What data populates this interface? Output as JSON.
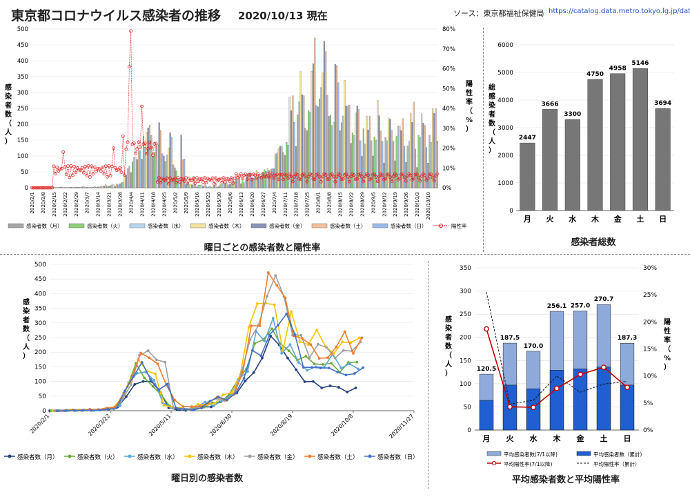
{
  "header": {
    "title": "東京都コロナウイルス感染者の推移",
    "date": "2020/10/13 現在",
    "source_label": "ソース：東京都福祉保健局",
    "source_url": "https://catalog.data.metro.tokyo.lg.jp/dat"
  },
  "colors": {
    "mon": "#a6a6a6",
    "tue": "#8fcf7b",
    "wed": "#b9d6ee",
    "thu": "#f2e29a",
    "fri": "#8a93b8",
    "sat": "#f3c19f",
    "sun": "#9bbbe6",
    "rate": "#e02020",
    "line_mon": "#23407a",
    "line_tue": "#6aaa3c",
    "line_wed": "#5aa7dc",
    "line_thu": "#f5c400",
    "line_fri": "#9f9f9f",
    "line_sat": "#ed7d31",
    "line_sun": "#4472c4",
    "total_bar": "#777777",
    "avg_light": "#8eaadb",
    "avg_dark": "#1f5fd1"
  },
  "chart_data": [
    {
      "id": "weekday-bars",
      "type": "bar",
      "caption": "曜日ごとの感染者数と陽性率",
      "ylabel": "感染者数（人）",
      "y2label": "陽性率（%）",
      "ylim": [
        0,
        500
      ],
      "y2lim": [
        0,
        0.8
      ],
      "yticks": [
        "0",
        "50",
        "100",
        "150",
        "200",
        "250",
        "300",
        "350",
        "400",
        "450",
        "500"
      ],
      "y2ticks": [
        "0%",
        "10%",
        "20%",
        "30%",
        "40%",
        "50%",
        "60%",
        "70%",
        "80%"
      ],
      "xticks": [
        "2020/2/1",
        "2020/2/8",
        "2020/2/15",
        "2020/2/22",
        "2020/2/29",
        "2020/3/7",
        "2020/3/14",
        "2020/3/21",
        "2020/3/28",
        "2020/4/4",
        "2020/4/11",
        "2020/4/18",
        "2020/4/25",
        "2020/5/2",
        "2020/5/9",
        "2020/5/16",
        "2020/5/23",
        "2020/5/30",
        "2020/6/6",
        "2020/6/13",
        "2020/6/20",
        "2020/6/27",
        "2020/7/4",
        "2020/7/11",
        "2020/7/18",
        "2020/7/25",
        "2020/8/1",
        "2020/8/8",
        "2020/8/15",
        "2020/8/22",
        "2020/8/29",
        "2020/9/5",
        "2020/9/12",
        "2020/9/19",
        "2020/9/26",
        "2020/10/3",
        "2020/10/10"
      ],
      "legend": [
        "感染者数（月）",
        "感染者数（火）",
        "感染者数（水）",
        "感染者数（木）",
        "感染者数（金）",
        "感染者数（土）",
        "感染者数（日）",
        "陽性率"
      ],
      "weekly_values": {
        "月": [
          0,
          0,
          1,
          1,
          2,
          2,
          3,
          6,
          13,
          48,
          90,
          100,
          100,
          63,
          10,
          3,
          1,
          5,
          13,
          13,
          30,
          48,
          60,
          102,
          130,
          180,
          255,
          225,
          180,
          140,
          99,
          100,
          78,
          85,
          80,
          64,
          78
        ],
        "火": [
          0,
          0,
          1,
          1,
          2,
          1,
          3,
          7,
          16,
          82,
          162,
          112,
          83,
          54,
          15,
          8,
          5,
          10,
          12,
          27,
          30,
          57,
          106,
          143,
          230,
          243,
          280,
          229,
          205,
          173,
          186,
          160,
          158,
          162,
          132,
          165,
          166
        ],
        "水": [
          0,
          0,
          1,
          1,
          2,
          1,
          5,
          9,
          17,
          96,
          128,
          132,
          104,
          28,
          10,
          8,
          3,
          13,
          29,
          16,
          35,
          52,
          110,
          134,
          271,
          238,
          316,
          196,
          226,
          165,
          138,
          150,
          148,
          194,
          146,
          160,
          143
        ],
        "木": [
          0,
          0,
          1,
          2,
          1,
          2,
          6,
          10,
          40,
          97,
          175,
          136,
          126,
          19,
          12,
          9,
          3,
          22,
          20,
          25,
          55,
          61,
          124,
          286,
          366,
          367,
          362,
          206,
          339,
          236,
          226,
          276,
          220,
          195,
          235,
          233,
          249
        ],
        "金": [
          0,
          0,
          2,
          2,
          3,
          2,
          6,
          5,
          40,
          89,
          189,
          205,
          174,
          166,
          9,
          5,
          7,
          12,
          27,
          42,
          35,
          54,
          131,
          243,
          293,
          391,
          462,
          389,
          258,
          258,
          182,
          227,
          216,
          180,
          206,
          204,
          235
        ],
        "土": [
          0,
          0,
          3,
          1,
          5,
          4,
          9,
          12,
          61,
          116,
          197,
          181,
          160,
          88,
          36,
          14,
          14,
          14,
          28,
          47,
          36,
          57,
          131,
          290,
          290,
          472,
          429,
          385,
          256,
          247,
          226,
          179,
          181,
          218,
          270,
          196,
          249
        ],
        "日": [
          0,
          0,
          1,
          1,
          1,
          2,
          5,
          9,
          68,
          117,
          165,
          107,
          72,
          91,
          10,
          5,
          2,
          9,
          33,
          47,
          36,
          60,
          111,
          206,
          188,
          259,
          292,
          331,
          260,
          148,
          148,
          146,
          146,
          132,
          122,
          127,
          147
        ]
      }
    },
    {
      "id": "weekday-totals",
      "type": "bar",
      "caption": "感染者総数",
      "ylabel": "総感染者数（人）",
      "ylim": [
        0,
        6000
      ],
      "yticks": [
        "0",
        "1000",
        "2000",
        "3000",
        "4000",
        "5000",
        "6000"
      ],
      "categories": [
        "月",
        "火",
        "水",
        "木",
        "金",
        "土",
        "日"
      ],
      "values": [
        2447,
        3666,
        3300,
        4750,
        4958,
        5146,
        3694
      ],
      "value_labels": [
        "2447",
        "3666",
        "3300",
        "4750",
        "4958",
        "5146",
        "3694"
      ]
    },
    {
      "id": "weekday-lines",
      "type": "line",
      "caption": "曜日別の感染者数",
      "ylabel": "感染者数（人）",
      "ylim": [
        0,
        500
      ],
      "yticks": [
        "0",
        "50",
        "100",
        "150",
        "200",
        "250",
        "300",
        "350",
        "400",
        "450",
        "500"
      ],
      "xticks": [
        "2020/2/1",
        "2020/3/22",
        "2020/5/11",
        "2020/6/30",
        "2020/8/19",
        "2020/10/8",
        "2020/11/27"
      ],
      "legend": [
        "感染者数（月）",
        "感染者数（火）",
        "感染者数（水）",
        "感染者数（木）",
        "感染者数（金）",
        "感染者数（土）",
        "感染者数（日）"
      ]
    },
    {
      "id": "average-rate",
      "type": "bar",
      "caption": "平均感染者数と平均陽性率",
      "ylabel": "感染者数（人）",
      "y2label": "陽性率（%）",
      "ylim": [
        0,
        350
      ],
      "y2lim": [
        0,
        0.3
      ],
      "yticks": [
        "0",
        "50",
        "100",
        "150",
        "200",
        "250",
        "300",
        "350"
      ],
      "y2ticks": [
        "0%",
        "5%",
        "10%",
        "15%",
        "20%",
        "25%",
        "30%"
      ],
      "categories": [
        "月",
        "火",
        "水",
        "木",
        "金",
        "土",
        "日"
      ],
      "series": [
        {
          "name": "平均感染者数(7/1以降)",
          "values": [
            120.5,
            187.5,
            170.0,
            256.1,
            257.0,
            270.7,
            187.3
          ]
        },
        {
          "name": "平均感染者数（累計）",
          "values": [
            64,
            97,
            89,
            129,
            132,
            136,
            97
          ]
        },
        {
          "name": "平均陽性率(7/1以降)",
          "values": [
            0.187,
            0.043,
            0.042,
            0.077,
            0.103,
            0.116,
            0.079
          ]
        },
        {
          "name": "平均陽性率（累計）",
          "values": [
            0.255,
            0.048,
            0.055,
            0.1,
            0.07,
            0.085,
            0.09
          ]
        }
      ],
      "value_labels": [
        "120.5",
        "187.5",
        "170.0",
        "256.1",
        "257.0",
        "270.7",
        "187.3"
      ],
      "legend": [
        "平均感染者数(7/1以降)",
        "平均感染者数（累計）",
        "平均陽性率(7/1以降)",
        "平均陽性率（累計）"
      ]
    }
  ]
}
